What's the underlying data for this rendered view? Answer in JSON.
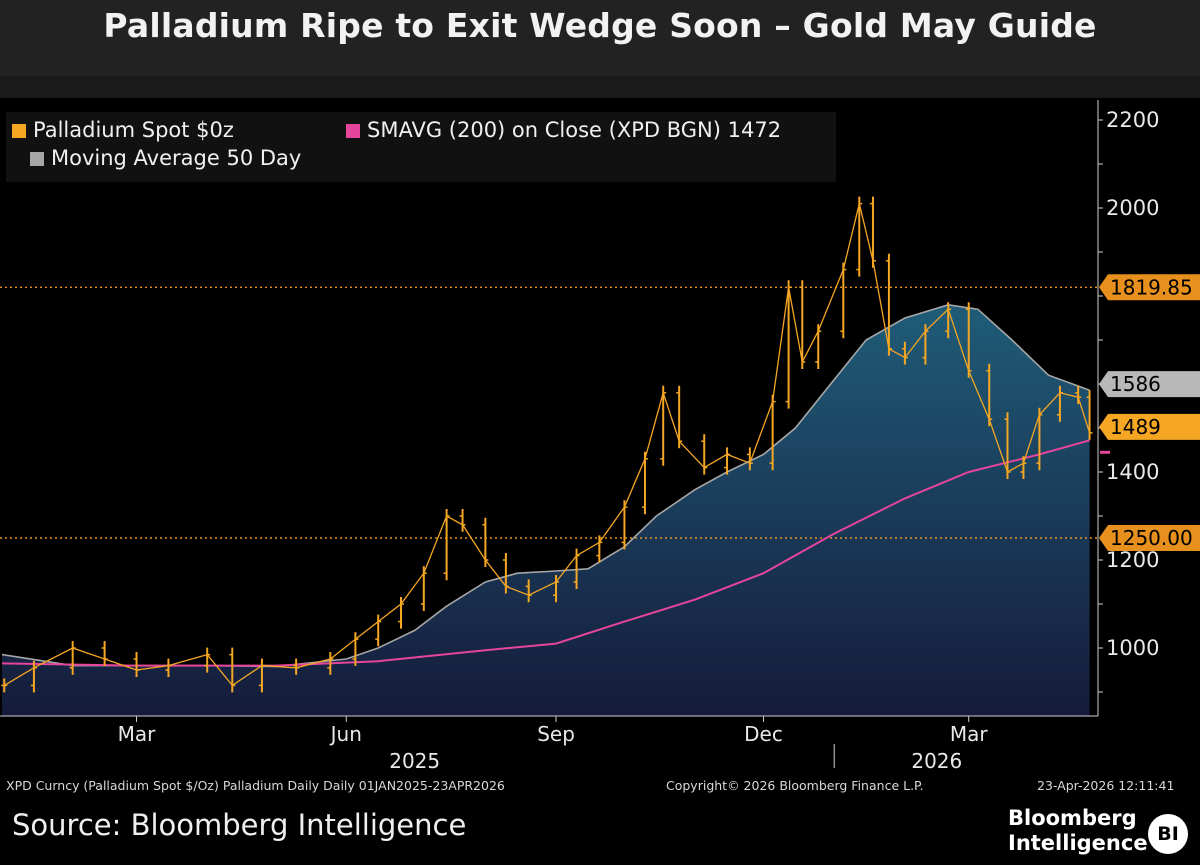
{
  "title": "Palladium Ripe to Exit Wedge Soon – Gold May Guide",
  "legend": {
    "spot_label": "Palladium Spot $0z",
    "smavg_label": "SMAVG (200)  on Close (XPD BGN) 1472",
    "ma50_label": "Moving Average 50 Day"
  },
  "footer": {
    "meta_left": "XPD Curncy (Palladium Spot  $/Oz) Palladium Daily Daily 01JAN2025-23APR2026",
    "meta_center": "Copyright© 2026 Bloomberg Finance L.P.",
    "meta_right": "23-Apr-2026 12:11:41",
    "source": "Source: Bloomberg Intelligence",
    "brand_line1": "Bloomberg",
    "brand_line2": "Intelligence",
    "brand_badge": "BI"
  },
  "colors": {
    "spot": "#f5a623",
    "ma50": "#a6a6a6",
    "sma200": "#e5459b",
    "fill_top": "#1f5c78",
    "fill_bottom": "#151b3a",
    "level_line": "#e8901e",
    "last_spot_badge": "#f5a623",
    "last_ma50_badge": "#b8b8b8",
    "grid_background": "#000000"
  },
  "chart_data": {
    "type": "line",
    "title": "",
    "xlabel": "",
    "ylabel": "",
    "ylim": [
      850,
      2250
    ],
    "x_range": [
      "2025-01-01",
      "2026-04-23"
    ],
    "y_ticks": [
      1000,
      1200,
      1400,
      2000,
      2200
    ],
    "x_tick_labels": [
      {
        "label": "Mar",
        "date": "2025-03-01"
      },
      {
        "label": "Jun",
        "date": "2025-06-01"
      },
      {
        "label": "Sep",
        "date": "2025-09-01"
      },
      {
        "label": "Dec",
        "date": "2025-12-01"
      },
      {
        "label": "Mar",
        "date": "2026-03-01"
      }
    ],
    "year_labels": [
      {
        "label": "2025",
        "date": "2025-07-01"
      },
      {
        "label": "2026",
        "date": "2026-02-15"
      }
    ],
    "year_divider_date": "2026-01-01",
    "horizontal_levels": [
      {
        "value": 1819.85,
        "label": "1819.85"
      },
      {
        "value": 1250.0,
        "label": "1250.00"
      }
    ],
    "last_value_badges": [
      {
        "series": "Moving Average 50 Day",
        "value": 1586,
        "label": "1586"
      },
      {
        "series": "Palladium Spot $0z",
        "value": 1489,
        "label": "1489"
      }
    ],
    "series": [
      {
        "name": "Palladium Spot $0z",
        "style": "ohlc",
        "points": [
          {
            "date": "2025-01-02",
            "value": 915
          },
          {
            "date": "2025-01-15",
            "value": 955
          },
          {
            "date": "2025-02-01",
            "value": 1000
          },
          {
            "date": "2025-02-15",
            "value": 975
          },
          {
            "date": "2025-03-01",
            "value": 950
          },
          {
            "date": "2025-03-15",
            "value": 960
          },
          {
            "date": "2025-04-01",
            "value": 985
          },
          {
            "date": "2025-04-12",
            "value": 915
          },
          {
            "date": "2025-04-25",
            "value": 960
          },
          {
            "date": "2025-05-10",
            "value": 955
          },
          {
            "date": "2025-05-25",
            "value": 975
          },
          {
            "date": "2025-06-05",
            "value": 1020
          },
          {
            "date": "2025-06-15",
            "value": 1060
          },
          {
            "date": "2025-06-25",
            "value": 1100
          },
          {
            "date": "2025-07-05",
            "value": 1170
          },
          {
            "date": "2025-07-15",
            "value": 1300
          },
          {
            "date": "2025-07-22",
            "value": 1280
          },
          {
            "date": "2025-08-01",
            "value": 1200
          },
          {
            "date": "2025-08-10",
            "value": 1140
          },
          {
            "date": "2025-08-20",
            "value": 1120
          },
          {
            "date": "2025-09-01",
            "value": 1150
          },
          {
            "date": "2025-09-10",
            "value": 1210
          },
          {
            "date": "2025-09-20",
            "value": 1240
          },
          {
            "date": "2025-10-01",
            "value": 1320
          },
          {
            "date": "2025-10-10",
            "value": 1430
          },
          {
            "date": "2025-10-18",
            "value": 1580
          },
          {
            "date": "2025-10-25",
            "value": 1470
          },
          {
            "date": "2025-11-05",
            "value": 1410
          },
          {
            "date": "2025-11-15",
            "value": 1440
          },
          {
            "date": "2025-11-25",
            "value": 1420
          },
          {
            "date": "2025-12-05",
            "value": 1560
          },
          {
            "date": "2025-12-12",
            "value": 1820
          },
          {
            "date": "2025-12-18",
            "value": 1650
          },
          {
            "date": "2025-12-25",
            "value": 1720
          },
          {
            "date": "2026-01-05",
            "value": 1860
          },
          {
            "date": "2026-01-12",
            "value": 2010
          },
          {
            "date": "2026-01-18",
            "value": 1880
          },
          {
            "date": "2026-01-25",
            "value": 1680
          },
          {
            "date": "2026-02-01",
            "value": 1660
          },
          {
            "date": "2026-02-10",
            "value": 1720
          },
          {
            "date": "2026-02-20",
            "value": 1770
          },
          {
            "date": "2026-03-01",
            "value": 1630
          },
          {
            "date": "2026-03-10",
            "value": 1520
          },
          {
            "date": "2026-03-18",
            "value": 1400
          },
          {
            "date": "2026-03-25",
            "value": 1420
          },
          {
            "date": "2026-04-01",
            "value": 1530
          },
          {
            "date": "2026-04-10",
            "value": 1580
          },
          {
            "date": "2026-04-18",
            "value": 1570
          },
          {
            "date": "2026-04-23",
            "value": 1489
          }
        ]
      },
      {
        "name": "Moving Average 50 Day",
        "style": "area",
        "points": [
          {
            "date": "2025-01-01",
            "value": 985
          },
          {
            "date": "2025-02-01",
            "value": 960
          },
          {
            "date": "2025-03-01",
            "value": 960
          },
          {
            "date": "2025-04-01",
            "value": 960
          },
          {
            "date": "2025-05-01",
            "value": 958
          },
          {
            "date": "2025-06-01",
            "value": 975
          },
          {
            "date": "2025-06-15",
            "value": 1000
          },
          {
            "date": "2025-07-01",
            "value": 1040
          },
          {
            "date": "2025-07-15",
            "value": 1095
          },
          {
            "date": "2025-08-01",
            "value": 1150
          },
          {
            "date": "2025-08-15",
            "value": 1170
          },
          {
            "date": "2025-09-01",
            "value": 1175
          },
          {
            "date": "2025-09-15",
            "value": 1180
          },
          {
            "date": "2025-10-01",
            "value": 1230
          },
          {
            "date": "2025-10-15",
            "value": 1300
          },
          {
            "date": "2025-11-01",
            "value": 1360
          },
          {
            "date": "2025-11-15",
            "value": 1400
          },
          {
            "date": "2025-12-01",
            "value": 1440
          },
          {
            "date": "2025-12-15",
            "value": 1500
          },
          {
            "date": "2026-01-01",
            "value": 1610
          },
          {
            "date": "2026-01-15",
            "value": 1700
          },
          {
            "date": "2026-02-01",
            "value": 1750
          },
          {
            "date": "2026-02-20",
            "value": 1780
          },
          {
            "date": "2026-03-05",
            "value": 1770
          },
          {
            "date": "2026-03-20",
            "value": 1700
          },
          {
            "date": "2026-04-05",
            "value": 1620
          },
          {
            "date": "2026-04-23",
            "value": 1586
          }
        ]
      },
      {
        "name": "SMAVG (200)  on Close (XPD BGN) 1472",
        "style": "line",
        "points": [
          {
            "date": "2025-01-01",
            "value": 965
          },
          {
            "date": "2025-03-01",
            "value": 960
          },
          {
            "date": "2025-05-01",
            "value": 960
          },
          {
            "date": "2025-06-15",
            "value": 970
          },
          {
            "date": "2025-08-01",
            "value": 995
          },
          {
            "date": "2025-09-01",
            "value": 1010
          },
          {
            "date": "2025-10-01",
            "value": 1060
          },
          {
            "date": "2025-11-01",
            "value": 1110
          },
          {
            "date": "2025-12-01",
            "value": 1170
          },
          {
            "date": "2026-01-01",
            "value": 1260
          },
          {
            "date": "2026-02-01",
            "value": 1340
          },
          {
            "date": "2026-03-01",
            "value": 1400
          },
          {
            "date": "2026-04-01",
            "value": 1440
          },
          {
            "date": "2026-04-23",
            "value": 1472
          }
        ]
      }
    ]
  }
}
